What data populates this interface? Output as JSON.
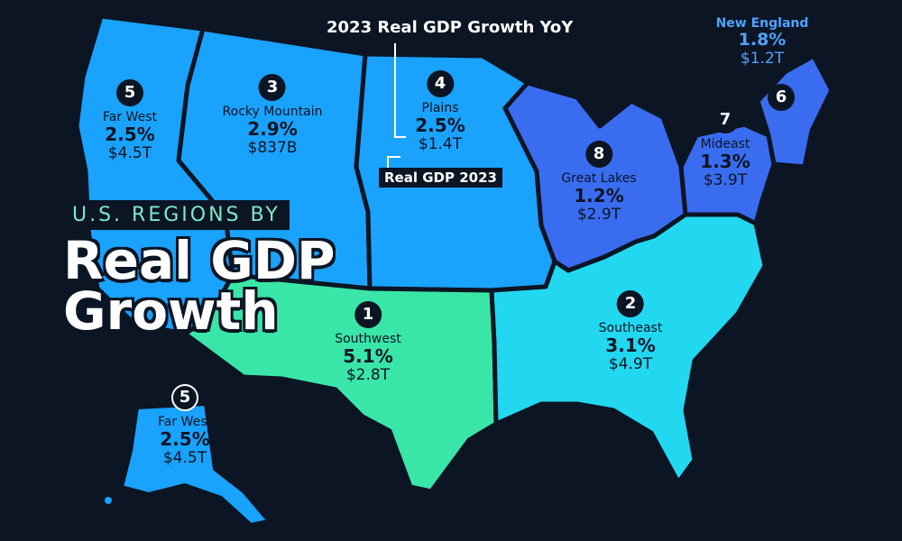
{
  "title_top": "U.S. REGIONS BY",
  "title_line1": "Real GDP",
  "title_line2": "Growth",
  "legend": {
    "growth_label": "2023 Real GDP Growth YoY",
    "gdp_label": "Real GDP 2023"
  },
  "colors": {
    "background": "#0b1524",
    "southwest": "#39e6a8",
    "southeast": "#22d8f0",
    "west_plains": "#1aa2ff",
    "great_lakes_mideast": "#3a6cf0",
    "new_england_text": "#4ea3ff"
  },
  "regions": [
    {
      "rank": "1",
      "name": "Southwest",
      "growth": "5.1%",
      "gdp": "$2.8T"
    },
    {
      "rank": "2",
      "name": "Southeast",
      "growth": "3.1%",
      "gdp": "$4.9T"
    },
    {
      "rank": "3",
      "name": "Rocky Mountain",
      "growth": "2.9%",
      "gdp": "$837B"
    },
    {
      "rank": "4",
      "name": "Plains",
      "growth": "2.5%",
      "gdp": "$1.4T"
    },
    {
      "rank": "5",
      "name": "Far West",
      "growth": "2.5%",
      "gdp": "$4.5T"
    },
    {
      "rank": "6",
      "name": "New England",
      "growth": "1.8%",
      "gdp": "$1.2T"
    },
    {
      "rank": "7",
      "name": "Mideast",
      "growth": "1.3%",
      "gdp": "$3.9T"
    },
    {
      "rank": "8",
      "name": "Great Lakes",
      "growth": "1.2%",
      "gdp": "$2.9T"
    }
  ],
  "alaska_label": {
    "rank": "5",
    "name": "Far West",
    "growth": "2.5%",
    "gdp": "$4.5T"
  }
}
